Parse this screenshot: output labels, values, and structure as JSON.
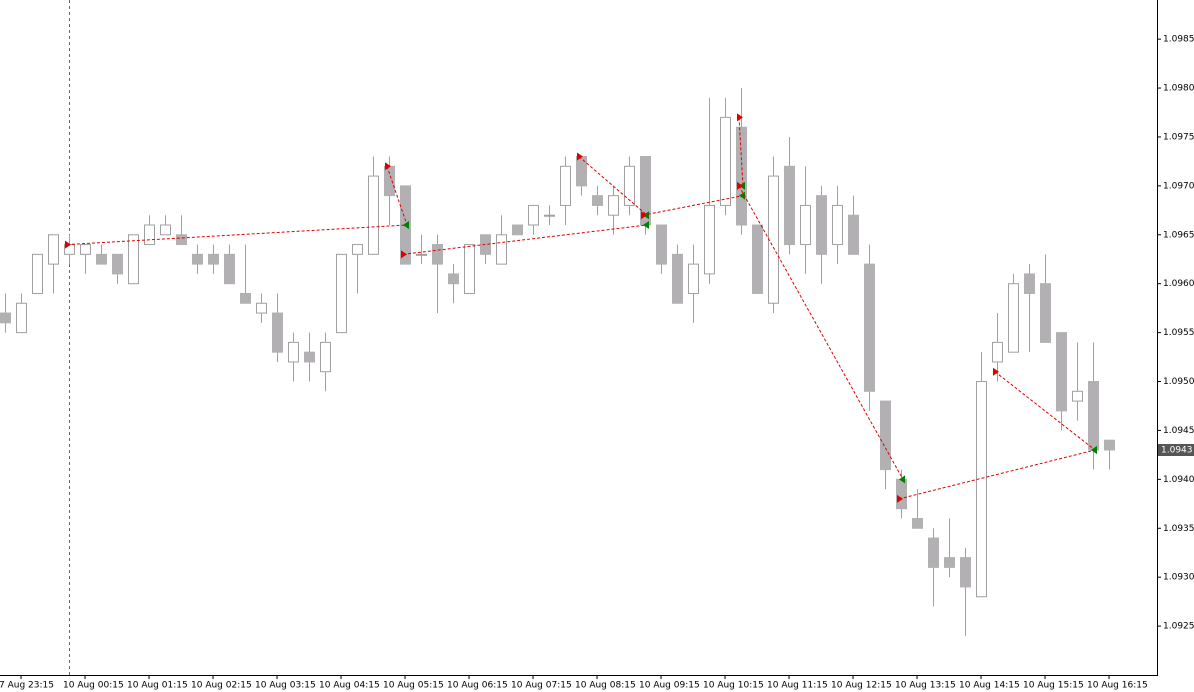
{
  "chart_data": {
    "type": "candlestick",
    "categories": [
      null,
      "7 Aug 23:15",
      null,
      null,
      null,
      "10 Aug 00:15",
      null,
      null,
      null,
      "10 Aug 01:15",
      null,
      null,
      null,
      "10 Aug 02:15",
      null,
      null,
      null,
      "10 Aug 03:15",
      null,
      null,
      null,
      "10 Aug 04:15",
      null,
      null,
      null,
      "10 Aug 05:15",
      null,
      null,
      null,
      "10 Aug 06:15",
      null,
      null,
      null,
      "10 Aug 07:15",
      null,
      null,
      null,
      "10 Aug 08:15",
      null,
      null,
      null,
      "10 Aug 09:15",
      null,
      null,
      null,
      "10 Aug 10:15",
      null,
      null,
      null,
      "10 Aug 11:15",
      null,
      null,
      null,
      "10 Aug 12:15",
      null,
      null,
      null,
      "10 Aug 13:15",
      null,
      null,
      null,
      "10 Aug 14:15",
      null,
      null,
      null,
      "10 Aug 15:15",
      null,
      null,
      null,
      "10 Aug 16:15"
    ],
    "open": [
      1.0957,
      1.0955,
      1.0959,
      1.0962,
      1.0963,
      1.0963,
      1.0963,
      1.0963,
      1.096,
      1.0964,
      1.0965,
      1.0965,
      1.0963,
      1.0963,
      1.0963,
      1.0959,
      1.0957,
      1.0957,
      1.0952,
      1.0953,
      1.0951,
      1.0955,
      1.0963,
      1.0963,
      1.0972,
      1.097,
      1.0963,
      1.0964,
      1.0961,
      1.0959,
      1.0965,
      1.0962,
      1.0966,
      1.0966,
      1.0967,
      1.0968,
      1.0973,
      1.0969,
      1.0967,
      1.0968,
      1.0973,
      1.0966,
      1.0963,
      1.0959,
      1.0961,
      1.0968,
      1.0976,
      1.0966,
      1.0958,
      1.0972,
      1.0964,
      1.0969,
      1.0964,
      1.0967,
      1.0962,
      1.0948,
      1.094,
      1.0936,
      1.0934,
      1.0932,
      1.0932,
      1.0928,
      1.0952,
      1.0953,
      1.0961,
      1.096,
      1.0955,
      1.0948,
      1.095,
      1.0944
    ],
    "high": [
      1.0959,
      1.0959,
      1.0963,
      1.0965,
      1.0965,
      1.0964,
      1.0964,
      1.0963,
      1.0965,
      1.0967,
      1.0967,
      1.0967,
      1.0964,
      1.0964,
      1.0964,
      1.0964,
      1.0959,
      1.0959,
      1.0955,
      1.0955,
      1.0955,
      1.0963,
      1.0964,
      1.0973,
      1.0973,
      1.097,
      1.0965,
      1.0965,
      1.0962,
      1.0964,
      1.0965,
      1.0967,
      1.0966,
      1.0968,
      1.0968,
      1.0973,
      1.0973,
      1.097,
      1.097,
      1.0973,
      1.0973,
      1.0966,
      1.0964,
      1.0964,
      1.0979,
      1.0979,
      1.098,
      1.0966,
      1.0973,
      1.0975,
      1.0972,
      1.097,
      1.097,
      1.0969,
      1.0964,
      1.0948,
      1.0941,
      1.0939,
      1.0935,
      1.0936,
      1.0933,
      1.0953,
      1.0957,
      1.0961,
      1.0962,
      1.0963,
      1.0955,
      1.0954,
      1.0954,
      1.0944
    ],
    "low": [
      1.0955,
      1.0955,
      1.0959,
      1.0959,
      1.0962,
      1.0961,
      1.0962,
      1.096,
      1.096,
      1.0964,
      1.0965,
      1.0964,
      1.0961,
      1.0961,
      1.096,
      1.0958,
      1.0956,
      1.0952,
      1.095,
      1.095,
      1.0949,
      1.0955,
      1.0959,
      1.0963,
      1.0966,
      1.0962,
      1.0962,
      1.0957,
      1.0958,
      1.0959,
      1.0962,
      1.0962,
      1.0965,
      1.0965,
      1.0966,
      1.0966,
      1.0969,
      1.0967,
      1.0965,
      1.0967,
      1.0965,
      1.0961,
      1.0958,
      1.0956,
      1.096,
      1.0967,
      1.0965,
      1.0959,
      1.0957,
      1.0963,
      1.0961,
      1.096,
      1.0962,
      1.0963,
      1.0947,
      1.0939,
      1.0936,
      1.0935,
      1.0927,
      1.093,
      1.0924,
      1.0928,
      1.095,
      1.0953,
      1.0953,
      1.0954,
      1.0945,
      1.0946,
      1.0941,
      1.0941
    ],
    "close": [
      1.0956,
      1.0958,
      1.0963,
      1.0965,
      1.0964,
      1.0964,
      1.0962,
      1.0961,
      1.0965,
      1.0966,
      1.0966,
      1.0964,
      1.0962,
      1.0962,
      1.096,
      1.0958,
      1.0958,
      1.0953,
      1.0954,
      1.0952,
      1.0954,
      1.0963,
      1.0964,
      1.0971,
      1.0969,
      1.0962,
      1.0963,
      1.0962,
      1.096,
      1.0964,
      1.0963,
      1.0965,
      1.0965,
      1.0968,
      1.0967,
      1.0972,
      1.097,
      1.0968,
      1.0969,
      1.0972,
      1.0966,
      1.0962,
      1.0958,
      1.0962,
      1.0968,
      1.0977,
      1.0966,
      1.0959,
      1.0971,
      1.0964,
      1.0968,
      1.0963,
      1.0968,
      1.0963,
      1.0949,
      1.0941,
      1.0937,
      1.0935,
      1.0931,
      1.0931,
      1.0929,
      1.095,
      1.0954,
      1.096,
      1.0959,
      1.0954,
      1.0947,
      1.0949,
      1.0943,
      1.0943
    ],
    "bull_color": "#ffffff",
    "bear_color": "#b2b0b2",
    "wick_color": "#a0a0a0",
    "trades": [
      {
        "entry_x": 4,
        "entry_price": 1.0964,
        "exit_x": 25,
        "exit_price": 1.0966
      },
      {
        "entry_x": 24,
        "entry_price": 1.0972,
        "exit_x": 25,
        "exit_price": 1.0966
      },
      {
        "entry_x": 25,
        "entry_price": 1.0963,
        "exit_x": 40,
        "exit_price": 1.0966
      },
      {
        "entry_x": 36,
        "entry_price": 1.0973,
        "exit_x": 40,
        "exit_price": 1.0967
      },
      {
        "entry_x": 40,
        "entry_price": 1.0967,
        "exit_x": 46,
        "exit_price": 1.0969
      },
      {
        "entry_x": 46,
        "entry_price": 1.0977,
        "exit_x": 46,
        "exit_price": 1.097
      },
      {
        "entry_x": 46,
        "entry_price": 1.097,
        "exit_x": 56,
        "exit_price": 1.094
      },
      {
        "entry_x": 56,
        "entry_price": 1.0938,
        "exit_x": 68,
        "exit_price": 1.0943
      },
      {
        "entry_x": 62,
        "entry_price": 1.0951,
        "exit_x": 68,
        "exit_price": 1.0943
      }
    ],
    "entry_color": "#e00000",
    "exit_color": "#008000",
    "current_price": 1.0943,
    "ylim": [
      1.092,
      1.0989
    ],
    "yticks": [
      {
        "value": 1.0925,
        "label": "1.0925"
      },
      {
        "value": 1.093,
        "label": "1.0930"
      },
      {
        "value": 1.0935,
        "label": "1.0935"
      },
      {
        "value": 1.094,
        "label": "1.0940"
      },
      {
        "value": 1.0945,
        "label": "1.0945"
      },
      {
        "value": 1.095,
        "label": "1.0950"
      },
      {
        "value": 1.0955,
        "label": "1.0955"
      },
      {
        "value": 1.096,
        "label": "1.0960"
      },
      {
        "value": 1.0965,
        "label": "1.0965"
      },
      {
        "value": 1.097,
        "label": "1.0970"
      },
      {
        "value": 1.0975,
        "label": "1.0975"
      },
      {
        "value": 1.098,
        "label": "1.0980"
      },
      1.0985
    ]
  }
}
